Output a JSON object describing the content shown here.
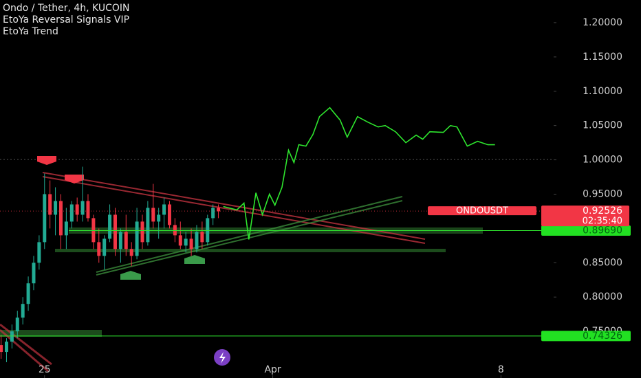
{
  "chart_data": {
    "type": "candlestick",
    "title": "Ondo / Tether, 4h, KUCOIN",
    "indicators": [
      "EtoYa Reversal Signals VIP",
      "EtoYa Trend"
    ],
    "symbol": "ONDOUSDT",
    "countdown": "02:35:40",
    "up_color": "#22ab94",
    "down_color": "#f23645",
    "x": [
      -8,
      -7,
      -6,
      -5,
      -4,
      -3,
      -2,
      -1,
      0,
      1,
      2,
      3,
      4,
      5,
      6,
      7,
      8,
      9,
      10,
      11,
      12,
      13,
      14,
      15,
      16,
      17,
      18,
      19,
      20,
      21,
      22,
      23,
      24,
      25,
      26,
      27,
      28,
      29,
      30,
      31,
      32
    ],
    "open": [
      0.73,
      0.72,
      0.735,
      0.75,
      0.77,
      0.79,
      0.82,
      0.85,
      0.88,
      0.95,
      0.92,
      0.94,
      0.89,
      0.91,
      0.935,
      0.92,
      0.94,
      0.915,
      0.88,
      0.86,
      0.885,
      0.92,
      0.87,
      0.895,
      0.87,
      0.86,
      0.91,
      0.88,
      0.93,
      0.91,
      0.92,
      0.935,
      0.905,
      0.89,
      0.875,
      0.885,
      0.87,
      0.895,
      0.88,
      0.915,
      0.93
    ],
    "high": [
      0.745,
      0.74,
      0.76,
      0.78,
      0.8,
      0.83,
      0.86,
      0.89,
      0.98,
      0.97,
      0.96,
      0.95,
      0.93,
      0.94,
      0.945,
      0.99,
      0.95,
      0.92,
      0.9,
      0.89,
      0.935,
      0.93,
      0.9,
      0.92,
      0.88,
      0.93,
      0.92,
      0.94,
      0.965,
      0.93,
      0.945,
      0.94,
      0.915,
      0.91,
      0.895,
      0.9,
      0.905,
      0.91,
      0.92,
      0.935,
      0.935
    ],
    "low": [
      0.71,
      0.705,
      0.725,
      0.74,
      0.76,
      0.78,
      0.81,
      0.84,
      0.87,
      0.9,
      0.89,
      0.87,
      0.87,
      0.9,
      0.91,
      0.91,
      0.91,
      0.87,
      0.85,
      0.84,
      0.88,
      0.86,
      0.85,
      0.86,
      0.845,
      0.855,
      0.87,
      0.875,
      0.9,
      0.885,
      0.9,
      0.9,
      0.88,
      0.87,
      0.865,
      0.86,
      0.865,
      0.87,
      0.875,
      0.905,
      0.915
    ],
    "close": [
      0.72,
      0.735,
      0.75,
      0.77,
      0.79,
      0.82,
      0.85,
      0.88,
      0.95,
      0.92,
      0.94,
      0.89,
      0.91,
      0.935,
      0.92,
      0.94,
      0.915,
      0.88,
      0.86,
      0.885,
      0.92,
      0.87,
      0.895,
      0.87,
      0.86,
      0.91,
      0.88,
      0.93,
      0.91,
      0.92,
      0.935,
      0.905,
      0.89,
      0.875,
      0.885,
      0.87,
      0.895,
      0.88,
      0.915,
      0.93,
      0.925
    ],
    "projection": {
      "color": "#2ee62e",
      "x": [
        32.9,
        35.4,
        36.7,
        37.6,
        38.9,
        40.1,
        41.4,
        42.4,
        43.7,
        44.9,
        45.9,
        46.8,
        48.1,
        49.4,
        50.6,
        52.5,
        54.4,
        55.7,
        57.6,
        59.5,
        61.4,
        62.7,
        64.6,
        66.5,
        68.4,
        69.6,
        70.9,
        73.4,
        74.7,
        75.9,
        77.8,
        79.7,
        81.6,
        82.9
      ],
      "values": [
        0.932,
        0.927,
        0.937,
        0.884,
        0.952,
        0.92,
        0.95,
        0.934,
        0.96,
        1.014,
        0.996,
        1.022,
        1.02,
        1.037,
        1.063,
        1.076,
        1.058,
        1.033,
        1.063,
        1.055,
        1.048,
        1.05,
        1.041,
        1.025,
        1.036,
        1.03,
        1.041,
        1.04,
        1.05,
        1.048,
        1.02,
        1.027,
        1.022,
        1.022
      ]
    },
    "last_price": {
      "value": 0.92526,
      "label": "0.92526"
    },
    "price_lines": [
      {
        "value": 0.8969,
        "label": "0.89690"
      },
      {
        "value": 0.74326,
        "label": "0.74326"
      }
    ],
    "xlim": [
      -8.2,
      93.7
    ],
    "ylim": [
      0.682,
      1.233
    ],
    "xticks": [
      {
        "value": 0,
        "label": "25"
      },
      {
        "value": 42,
        "label": "Apr"
      },
      {
        "value": 84,
        "label": "8"
      }
    ],
    "yticks": [
      {
        "value": 0.75,
        "label": "0.75000"
      },
      {
        "value": 0.8,
        "label": "0.80000"
      },
      {
        "value": 0.85,
        "label": "0.85000"
      },
      {
        "value": 0.9,
        "label": "0.90000"
      },
      {
        "value": 0.95,
        "label": "0.95000"
      },
      {
        "value": 1.0,
        "label": "1.00000"
      },
      {
        "value": 1.05,
        "label": "1.05000"
      },
      {
        "value": 1.1,
        "label": "1.10000"
      },
      {
        "value": 1.15,
        "label": "1.15000"
      },
      {
        "value": 1.2,
        "label": "1.20000"
      }
    ]
  }
}
